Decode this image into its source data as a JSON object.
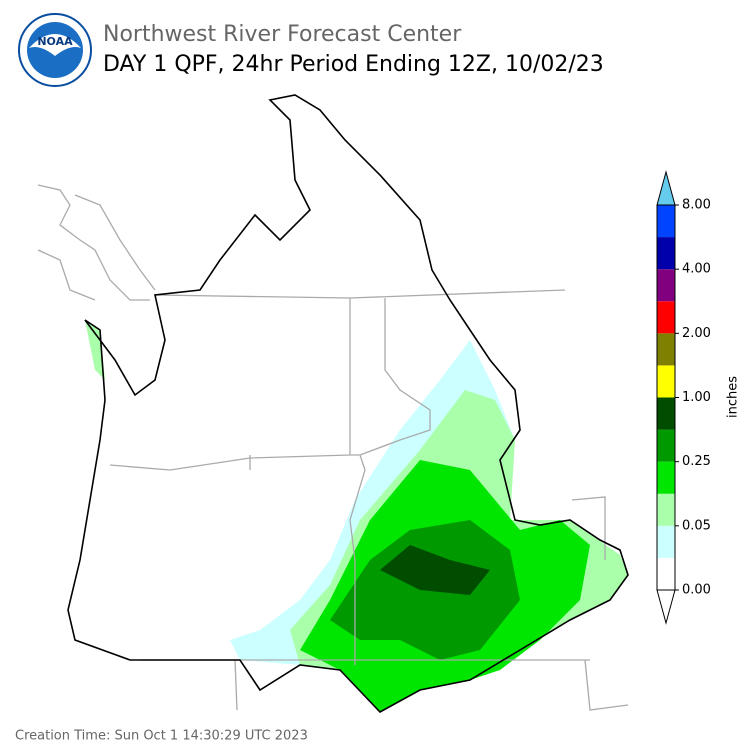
{
  "header": {
    "title": "Northwest River Forecast Center",
    "subtitle": "DAY 1 QPF, 24hr Period Ending 12Z, 10/02/23"
  },
  "colorbar": {
    "label": "inches",
    "ticks": [
      "0.00",
      "0.05",
      "0.25",
      "1.00",
      "2.00",
      "4.00",
      "8.00"
    ],
    "colors": [
      "#ffffff",
      "#ccffff",
      "#aaffaa",
      "#00e600",
      "#009900",
      "#004d00",
      "#ffff00",
      "#808000",
      "#ff0000",
      "#800080",
      "#0000aa",
      "#0044ff"
    ],
    "under_color": "#ffffff",
    "over_color": "#66ccee"
  },
  "footer": {
    "creation_time": "Creation Time: Sun Oct 1 14:30:29 UTC 2023"
  }
}
